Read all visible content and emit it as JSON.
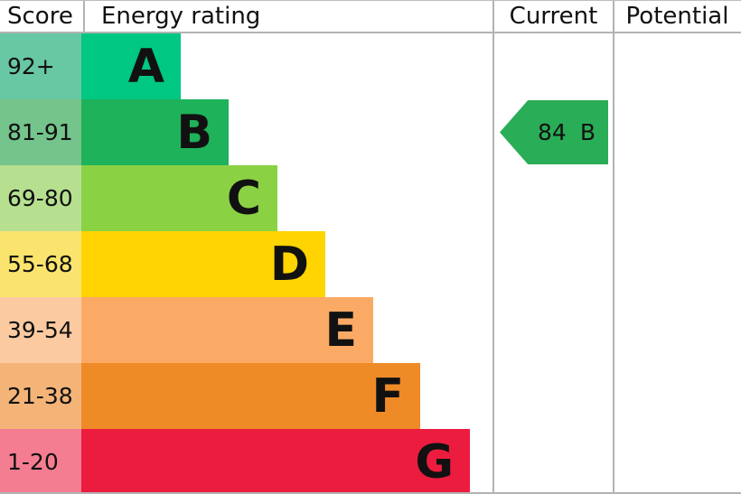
{
  "header": {
    "score": "Score",
    "energy_rating": "Energy rating",
    "current": "Current",
    "potential": "Potential"
  },
  "chart_data": {
    "type": "bar",
    "title": "Energy rating",
    "description": "EPC energy efficiency rating chart with banded horizontal bars A-G",
    "categories": [
      "A",
      "B",
      "C",
      "D",
      "E",
      "F",
      "G"
    ],
    "bands": [
      {
        "letter": "A",
        "score_range": "92+",
        "bar_color": "#00c781",
        "score_bg": "#68c8a3"
      },
      {
        "letter": "B",
        "score_range": "81-91",
        "bar_color": "#1eb25b",
        "score_bg": "#74c48c"
      },
      {
        "letter": "C",
        "score_range": "69-80",
        "bar_color": "#8ad243",
        "score_bg": "#b6e090"
      },
      {
        "letter": "D",
        "score_range": "55-68",
        "bar_color": "#ffd401",
        "score_bg": "#fbe46d"
      },
      {
        "letter": "E",
        "score_range": "39-54",
        "bar_color": "#fbaa65",
        "score_bg": "#fccaa1"
      },
      {
        "letter": "F",
        "score_range": "21-38",
        "bar_color": "#ef8b27",
        "score_bg": "#f4b478"
      },
      {
        "letter": "G",
        "score_range": "1-20",
        "bar_color": "#ec1c3f",
        "score_bg": "#f57d92"
      }
    ],
    "current": {
      "value": "84",
      "letter": "B",
      "arrow_color": "#2aad57"
    },
    "legend_position": "none",
    "grid": false
  }
}
